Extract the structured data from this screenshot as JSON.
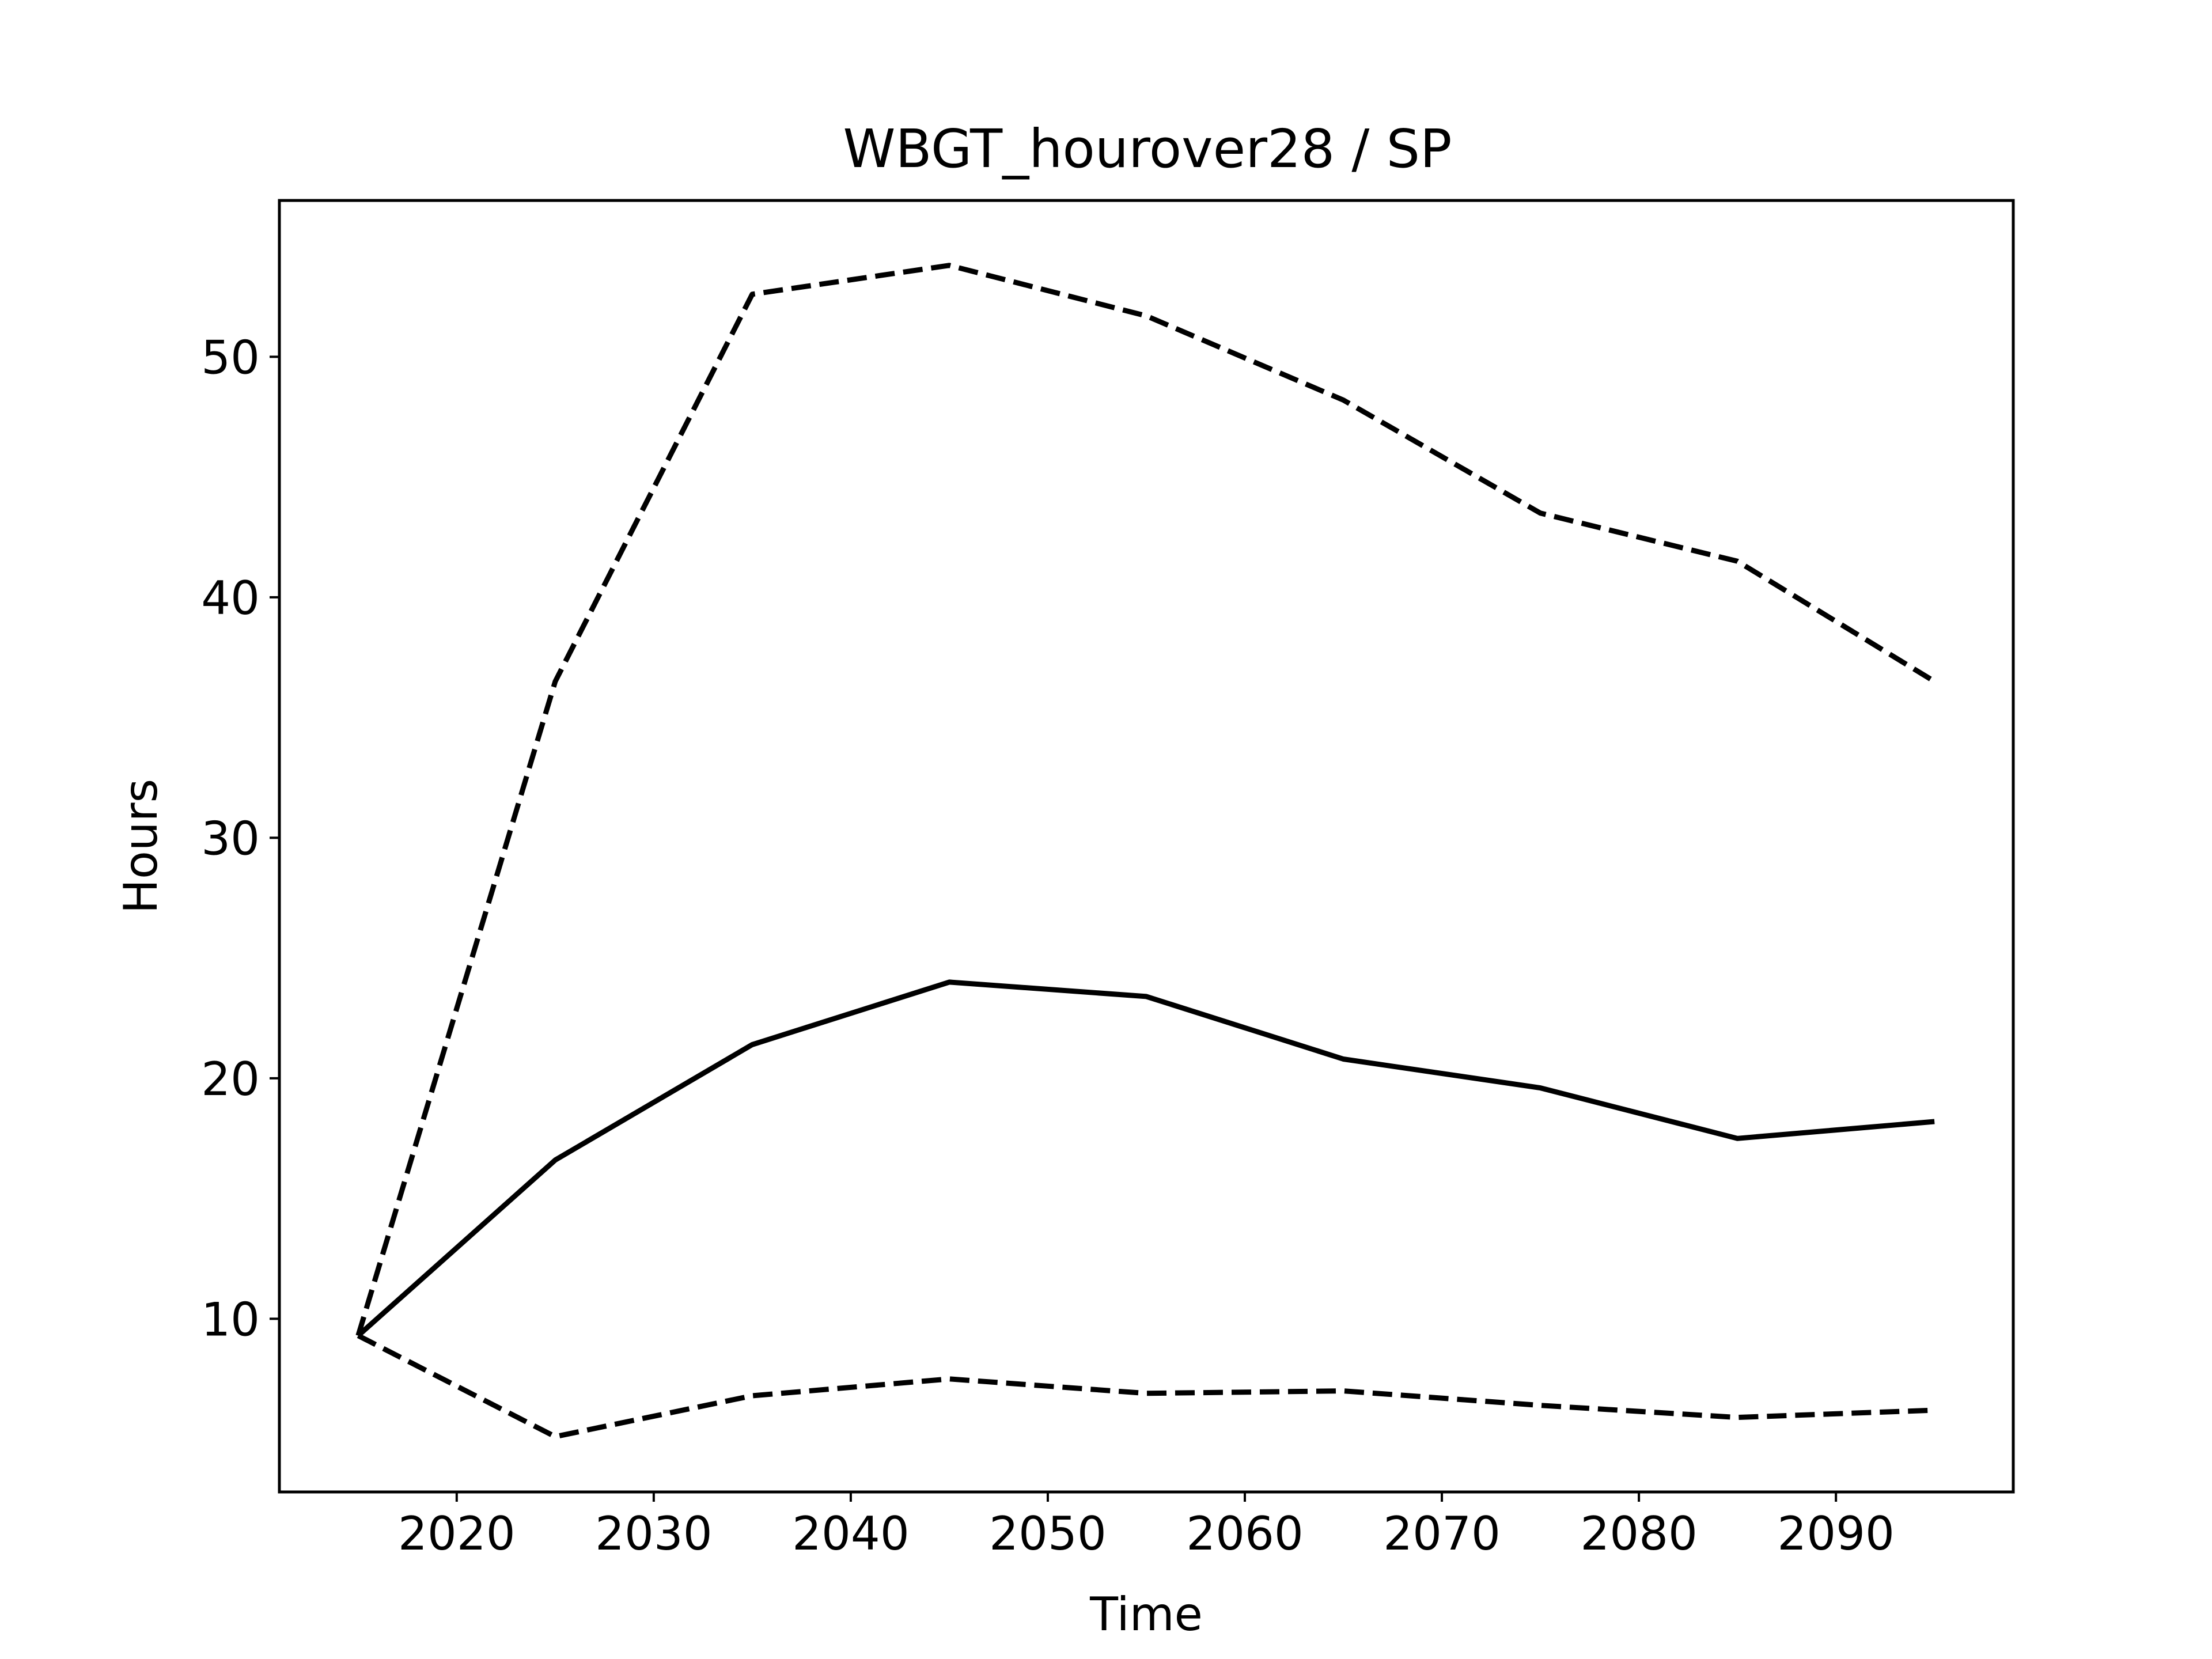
{
  "chart_data": {
    "type": "line",
    "title": "WBGT_hourover28 / SP",
    "xlabel": "Time",
    "ylabel": "Hours",
    "xlim": [
      2011,
      2099
    ],
    "ylim": [
      2.8,
      56.5
    ],
    "x_ticks": [
      2020,
      2030,
      2040,
      2050,
      2060,
      2070,
      2080,
      2090
    ],
    "y_ticks": [
      10,
      20,
      30,
      40,
      50
    ],
    "grid": false,
    "legend": "none",
    "x": [
      2015,
      2025,
      2035,
      2045,
      2055,
      2065,
      2075,
      2085,
      2095
    ],
    "series": [
      {
        "style": "dashed",
        "color": "#000000",
        "values": [
          9.3,
          36.5,
          52.6,
          53.8,
          51.7,
          48.2,
          43.5,
          41.5,
          36.5
        ]
      },
      {
        "style": "solid",
        "color": "#000000",
        "values": [
          9.3,
          16.6,
          21.4,
          24.0,
          23.4,
          20.8,
          19.6,
          17.5,
          18.2
        ]
      },
      {
        "style": "dashed",
        "color": "#000000",
        "values": [
          9.3,
          5.1,
          6.8,
          7.5,
          6.9,
          7.0,
          6.4,
          5.9,
          6.2
        ]
      }
    ]
  }
}
